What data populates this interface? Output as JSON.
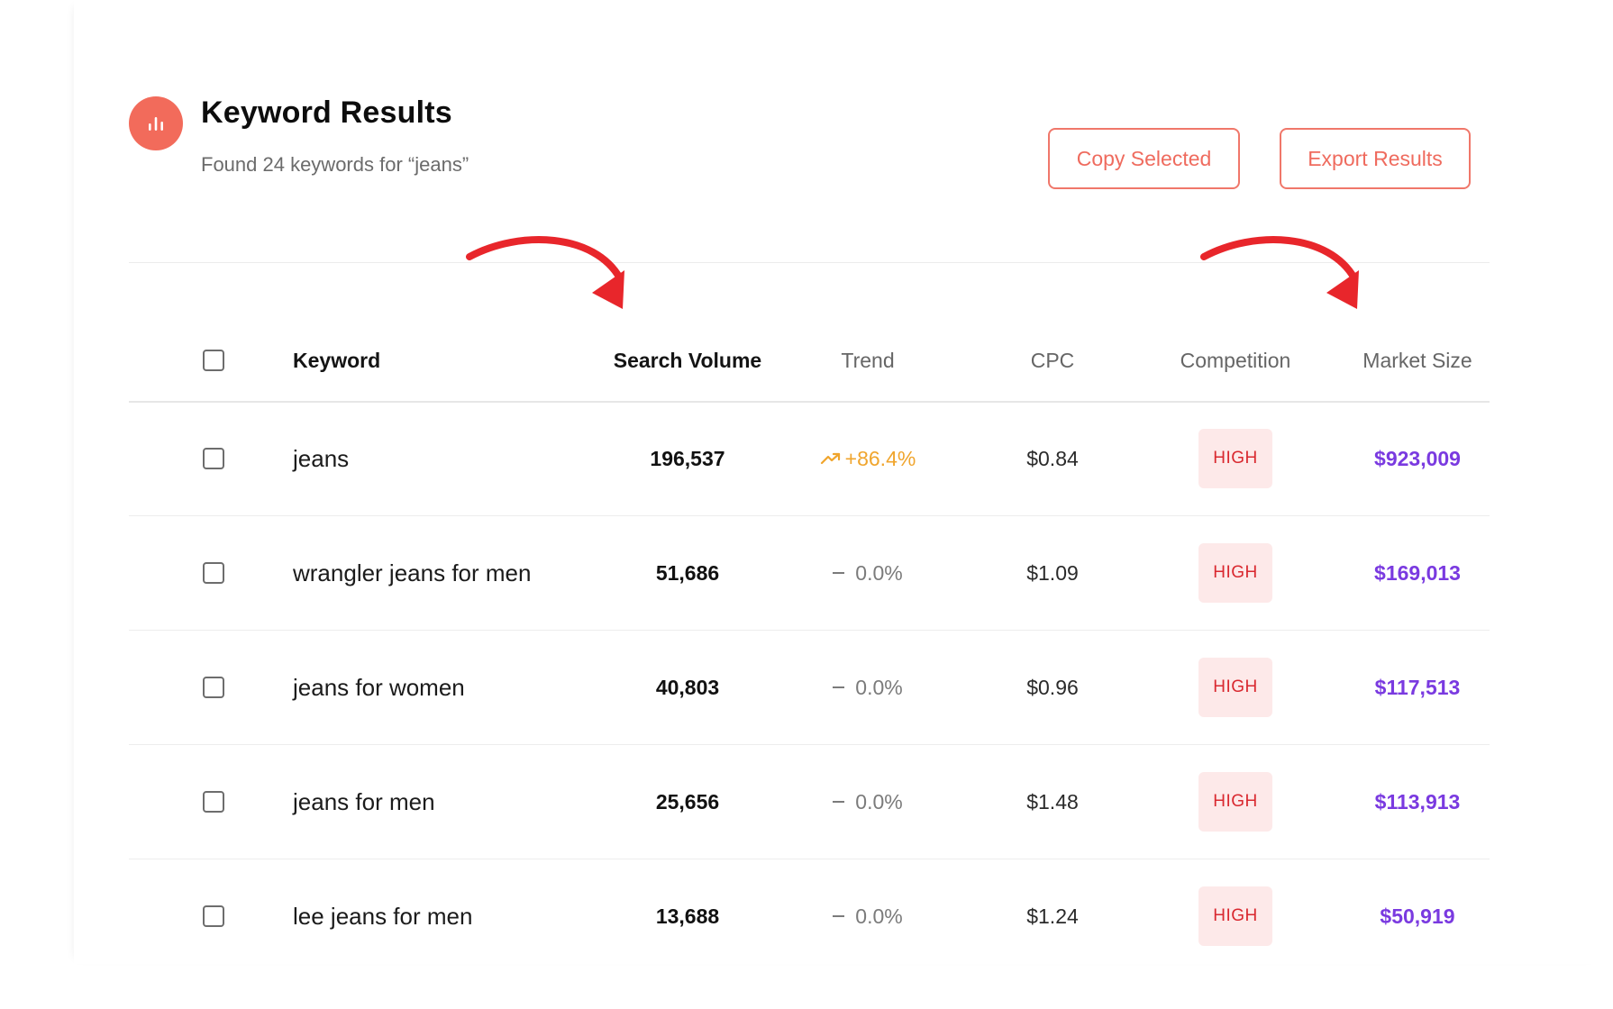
{
  "header": {
    "title": "Keyword Results",
    "subtitle": "Found 24 keywords for “jeans”",
    "icon": "bar-chart-icon",
    "accent": "#f26b5b"
  },
  "actions": {
    "copy_label": "Copy Selected",
    "export_label": "Export Results"
  },
  "table": {
    "columns": {
      "keyword": "Keyword",
      "volume": "Search Volume",
      "trend": "Trend",
      "cpc": "CPC",
      "competition": "Competition",
      "market": "Market Size"
    },
    "rows": [
      {
        "keyword": "jeans",
        "volume": "196,537",
        "trend": "+86.4%",
        "trend_dir": "up",
        "cpc": "$0.84",
        "competition": "HIGH",
        "market": "$923,009"
      },
      {
        "keyword": "wrangler jeans for men",
        "volume": "51,686",
        "trend": "0.0%",
        "trend_dir": "flat",
        "cpc": "$1.09",
        "competition": "HIGH",
        "market": "$169,013"
      },
      {
        "keyword": "jeans for women",
        "volume": "40,803",
        "trend": "0.0%",
        "trend_dir": "flat",
        "cpc": "$0.96",
        "competition": "HIGH",
        "market": "$117,513"
      },
      {
        "keyword": "jeans for men",
        "volume": "25,656",
        "trend": "0.0%",
        "trend_dir": "flat",
        "cpc": "$1.48",
        "competition": "HIGH",
        "market": "$113,913"
      },
      {
        "keyword": "lee jeans for men",
        "volume": "13,688",
        "trend": "0.0%",
        "trend_dir": "flat",
        "cpc": "$1.24",
        "competition": "HIGH",
        "market": "$50,919"
      }
    ]
  },
  "colors": {
    "trend_up": "#f0a52d",
    "market_size": "#7a3ae0",
    "badge_bg": "#fde9e9",
    "badge_text": "#d9282f",
    "annotation_arrow": "#e8262b"
  }
}
